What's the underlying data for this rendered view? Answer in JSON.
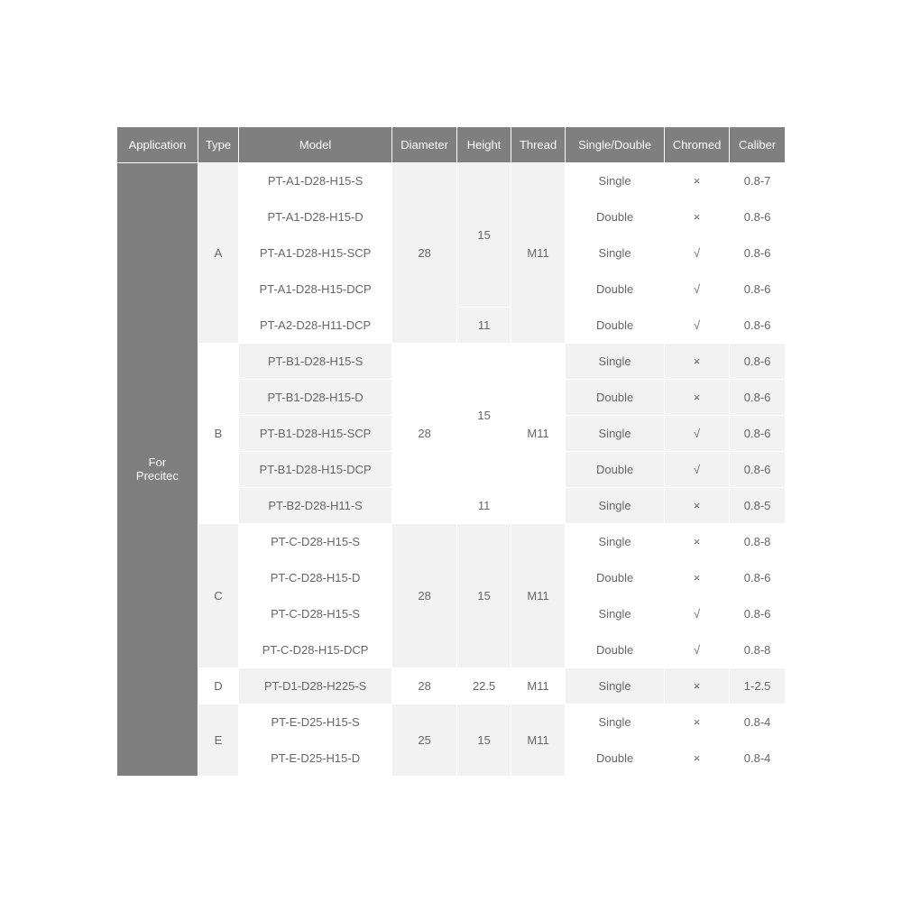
{
  "colors": {
    "header_bg": "#7f7f7f",
    "header_text": "#ffffff",
    "cell_gray": "#f2f2f2",
    "cell_white": "#ffffff",
    "cell_text": "#666666",
    "border": "#ffffff"
  },
  "table": {
    "headers": [
      "Application",
      "Type",
      "Model",
      "Diameter",
      "Height",
      "Thread",
      "Single/Double",
      "Chromed",
      "Caliber"
    ],
    "application": "For Precitec",
    "groups": [
      {
        "type": "A",
        "diameter": "28",
        "thread": "M11",
        "shade": "gray",
        "height_spans": [
          {
            "value": "15",
            "count": 4
          },
          {
            "value": "11",
            "count": 1
          }
        ],
        "rows": [
          {
            "model": "PT-A1-D28-H15-S",
            "sd": "Single",
            "chromed": "×",
            "caliber": "0.8-7"
          },
          {
            "model": "PT-A1-D28-H15-D",
            "sd": "Double",
            "chromed": "×",
            "caliber": "0.8-6"
          },
          {
            "model": "PT-A1-D28-H15-SCP",
            "sd": "Single",
            "chromed": "√",
            "caliber": "0.8-6"
          },
          {
            "model": "PT-A1-D28-H15-DCP",
            "sd": "Double",
            "chromed": "√",
            "caliber": "0.8-6"
          },
          {
            "model": "PT-A2-D28-H11-DCP",
            "sd": "Double",
            "chromed": "√",
            "caliber": "0.8-6"
          }
        ]
      },
      {
        "type": "B",
        "diameter": "28",
        "thread": "M11",
        "shade": "white",
        "height_spans": [
          {
            "value": "15",
            "count": 4
          },
          {
            "value": "11",
            "count": 1
          }
        ],
        "rows": [
          {
            "model": "PT-B1-D28-H15-S",
            "sd": "Single",
            "chromed": "×",
            "caliber": "0.8-6"
          },
          {
            "model": "PT-B1-D28-H15-D",
            "sd": "Double",
            "chromed": "×",
            "caliber": "0.8-6"
          },
          {
            "model": "PT-B1-D28-H15-SCP",
            "sd": "Single",
            "chromed": "√",
            "caliber": "0.8-6"
          },
          {
            "model": "PT-B1-D28-H15-DCP",
            "sd": "Double",
            "chromed": "√",
            "caliber": "0.8-6"
          },
          {
            "model": "PT-B2-D28-H11-S",
            "sd": "Single",
            "chromed": "×",
            "caliber": "0.8-5"
          }
        ]
      },
      {
        "type": "C",
        "diameter": "28",
        "thread": "M11",
        "shade": "gray",
        "height_spans": [
          {
            "value": "15",
            "count": 4
          }
        ],
        "rows": [
          {
            "model": "PT-C-D28-H15-S",
            "sd": "Single",
            "chromed": "×",
            "caliber": "0.8-8"
          },
          {
            "model": "PT-C-D28-H15-D",
            "sd": "Double",
            "chromed": "×",
            "caliber": "0.8-6"
          },
          {
            "model": "PT-C-D28-H15-S",
            "sd": "Single",
            "chromed": "√",
            "caliber": "0.8-6"
          },
          {
            "model": "PT-C-D28-H15-DCP",
            "sd": "Double",
            "chromed": "√",
            "caliber": "0.8-8"
          }
        ]
      },
      {
        "type": "D",
        "diameter": "28",
        "thread": "M11",
        "shade": "white",
        "height_spans": [
          {
            "value": "22.5",
            "count": 1
          }
        ],
        "rows": [
          {
            "model": "PT-D1-D28-H225-S",
            "sd": "Single",
            "chromed": "×",
            "caliber": "1-2.5"
          }
        ]
      },
      {
        "type": "E",
        "diameter": "25",
        "thread": "M11",
        "shade": "gray",
        "height_spans": [
          {
            "value": "15",
            "count": 2
          }
        ],
        "rows": [
          {
            "model": "PT-E-D25-H15-S",
            "sd": "Single",
            "chromed": "×",
            "caliber": "0.8-4"
          },
          {
            "model": "PT-E-D25-H15-D",
            "sd": "Double",
            "chromed": "×",
            "caliber": "0.8-4"
          }
        ]
      }
    ]
  }
}
